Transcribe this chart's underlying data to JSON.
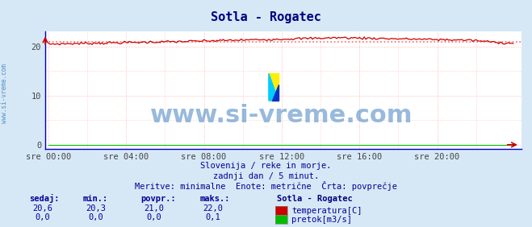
{
  "title": "Sotla - Rogatec",
  "title_color": "#000080",
  "bg_color": "#d6e8f5",
  "plot_bg_color": "#ffffff",
  "grid_color": "#ffaaaa",
  "grid_style": "dotted",
  "axis_color": "#0000cc",
  "xlabel_ticks": [
    "sre 00:00",
    "sre 04:00",
    "sre 08:00",
    "sre 12:00",
    "sre 16:00",
    "sre 20:00"
  ],
  "xtick_pos": [
    0,
    48,
    96,
    144,
    192,
    240
  ],
  "yticks": [
    0,
    10,
    20
  ],
  "ylim_min": -0.8,
  "ylim_max": 23.0,
  "xlim_min": -2,
  "xlim_max": 292,
  "n_points": 288,
  "temp_avg": 21.0,
  "temp_min": 20.3,
  "temp_max": 22.0,
  "temp_current": 20.6,
  "flow_line_color": "#00bb00",
  "temp_line_color": "#cc0000",
  "avg_line_color": "#ff6666",
  "watermark": "www.si-vreme.com",
  "watermark_color": "#3377bb",
  "watermark_alpha": 0.5,
  "watermark_fontsize": 22,
  "side_label": "www.si-vreme.com",
  "footer_line1": "Slovenija / reke in morje.",
  "footer_line2": "zadnji dan / 5 minut.",
  "footer_line3": "Meritve: minimalne  Enote: metrične  Črta: povprečje",
  "footer_color": "#000099",
  "table_header": [
    "sedaj:",
    "min.:",
    "povpr.:",
    "maks.:"
  ],
  "table_header_color": "#000099",
  "table_row1": [
    "20,6",
    "20,3",
    "21,0",
    "22,0"
  ],
  "table_row2": [
    "0,0",
    "0,0",
    "0,0",
    "0,1"
  ],
  "table_color": "#000099",
  "legend_title": "Sotla - Rogatec",
  "legend_label1": "temperatura[C]",
  "legend_label2": "pretok[m3/s]",
  "legend_color1": "#cc0000",
  "legend_color2": "#00bb00",
  "logo_color1": "#ffee00",
  "logo_color2": "#00ccff",
  "logo_color3": "#0033cc"
}
